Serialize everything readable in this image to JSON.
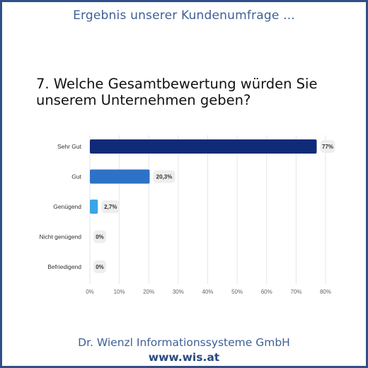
{
  "header": {
    "title": "Ergebnis unserer Kundenumfrage ..."
  },
  "question": {
    "text": "7. Welche Gesamtbewertung würden Sie unserem Unternehmen geben?"
  },
  "footer": {
    "company": "Dr. Wienzl Informationssysteme GmbH",
    "url": "www.wis.at"
  },
  "chart_data": {
    "type": "bar",
    "orientation": "horizontal",
    "categories": [
      "Sehr Gut",
      "Gut",
      "Genügend",
      "Nicht genügend",
      "Befriedigend"
    ],
    "values": [
      77,
      20.3,
      2.7,
      0,
      0
    ],
    "value_labels": [
      "77%",
      "20,3%",
      "2,7%",
      "0%",
      "0%"
    ],
    "xlim": [
      0,
      80
    ],
    "x_ticks": [
      0,
      10,
      20,
      30,
      40,
      50,
      60,
      70,
      80
    ],
    "x_tick_labels": [
      "0%",
      "10%",
      "20%",
      "30%",
      "40%",
      "50%",
      "60%",
      "70%",
      "80%"
    ],
    "bar_colors": [
      "#0f2b78",
      "#2e72c8",
      "#3aa6e6",
      "#3aa6e6",
      "#3aa6e6"
    ],
    "grid": true,
    "legend": false,
    "title": "",
    "xlabel": "",
    "ylabel": ""
  }
}
